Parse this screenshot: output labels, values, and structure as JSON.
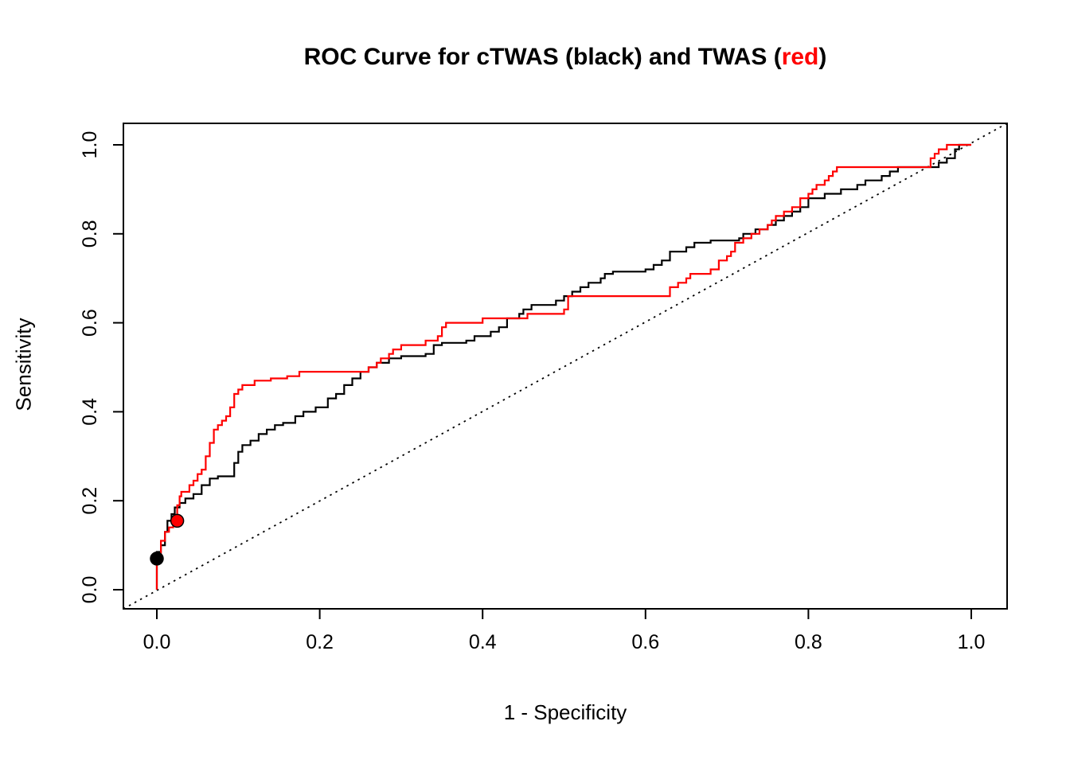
{
  "title": {
    "prefix": "ROC Curve for cTWAS (black) and TWAS (",
    "highlight": "red",
    "suffix": ")"
  },
  "colors": {
    "black": "#000000",
    "red": "#ff0000",
    "background": "#ffffff"
  },
  "chart_data": {
    "type": "line",
    "subtype": "roc-step-curve",
    "title": "ROC Curve for cTWAS (black) and TWAS (red)",
    "xlabel": "1 - Specificity",
    "ylabel": "Sensitivity",
    "xlim": [
      0,
      1
    ],
    "ylim": [
      0,
      1
    ],
    "grid": false,
    "legend_position": "none",
    "x_ticks": [
      0.0,
      0.2,
      0.4,
      0.6,
      0.8,
      1.0
    ],
    "y_ticks": [
      0.0,
      0.2,
      0.4,
      0.6,
      0.8,
      1.0
    ],
    "x_tick_labels": [
      "0.0",
      "0.2",
      "0.4",
      "0.6",
      "0.8",
      "1.0"
    ],
    "y_tick_labels": [
      "0.0",
      "0.2",
      "0.4",
      "0.6",
      "0.8",
      "1.0"
    ],
    "reference_line": {
      "style": "dotted",
      "color": "#000000",
      "from": [
        0,
        0
      ],
      "to": [
        1,
        1
      ]
    },
    "series": [
      {
        "name": "cTWAS",
        "color": "#000000",
        "marker": {
          "x": 0.0,
          "y": 0.07,
          "color": "#000000"
        },
        "points": [
          [
            0.0,
            0.0
          ],
          [
            0.0,
            0.07
          ],
          [
            0.005,
            0.085
          ],
          [
            0.01,
            0.1
          ],
          [
            0.013,
            0.13
          ],
          [
            0.018,
            0.155
          ],
          [
            0.022,
            0.17
          ],
          [
            0.028,
            0.185
          ],
          [
            0.035,
            0.195
          ],
          [
            0.045,
            0.205
          ],
          [
            0.055,
            0.215
          ],
          [
            0.065,
            0.235
          ],
          [
            0.075,
            0.25
          ],
          [
            0.095,
            0.255
          ],
          [
            0.1,
            0.285
          ],
          [
            0.105,
            0.31
          ],
          [
            0.115,
            0.325
          ],
          [
            0.125,
            0.335
          ],
          [
            0.135,
            0.35
          ],
          [
            0.145,
            0.36
          ],
          [
            0.155,
            0.37
          ],
          [
            0.17,
            0.375
          ],
          [
            0.18,
            0.39
          ],
          [
            0.195,
            0.4
          ],
          [
            0.21,
            0.41
          ],
          [
            0.22,
            0.43
          ],
          [
            0.23,
            0.44
          ],
          [
            0.24,
            0.46
          ],
          [
            0.25,
            0.475
          ],
          [
            0.26,
            0.49
          ],
          [
            0.27,
            0.5
          ],
          [
            0.285,
            0.51
          ],
          [
            0.3,
            0.52
          ],
          [
            0.33,
            0.525
          ],
          [
            0.34,
            0.53
          ],
          [
            0.35,
            0.55
          ],
          [
            0.38,
            0.555
          ],
          [
            0.39,
            0.56
          ],
          [
            0.41,
            0.57
          ],
          [
            0.42,
            0.58
          ],
          [
            0.43,
            0.59
          ],
          [
            0.445,
            0.61
          ],
          [
            0.45,
            0.62
          ],
          [
            0.46,
            0.63
          ],
          [
            0.49,
            0.64
          ],
          [
            0.5,
            0.65
          ],
          [
            0.51,
            0.66
          ],
          [
            0.52,
            0.67
          ],
          [
            0.53,
            0.68
          ],
          [
            0.545,
            0.69
          ],
          [
            0.55,
            0.7
          ],
          [
            0.56,
            0.71
          ],
          [
            0.6,
            0.715
          ],
          [
            0.61,
            0.72
          ],
          [
            0.62,
            0.73
          ],
          [
            0.63,
            0.74
          ],
          [
            0.65,
            0.76
          ],
          [
            0.66,
            0.77
          ],
          [
            0.68,
            0.78
          ],
          [
            0.715,
            0.785
          ],
          [
            0.72,
            0.79
          ],
          [
            0.735,
            0.8
          ],
          [
            0.75,
            0.81
          ],
          [
            0.76,
            0.82
          ],
          [
            0.77,
            0.83
          ],
          [
            0.78,
            0.84
          ],
          [
            0.79,
            0.85
          ],
          [
            0.8,
            0.86
          ],
          [
            0.82,
            0.88
          ],
          [
            0.84,
            0.89
          ],
          [
            0.86,
            0.9
          ],
          [
            0.87,
            0.91
          ],
          [
            0.89,
            0.92
          ],
          [
            0.9,
            0.93
          ],
          [
            0.91,
            0.94
          ],
          [
            0.92,
            0.95
          ],
          [
            0.96,
            0.95
          ],
          [
            0.97,
            0.96
          ],
          [
            0.98,
            0.97
          ],
          [
            0.985,
            0.99
          ],
          [
            1.0,
            1.0
          ]
        ]
      },
      {
        "name": "TWAS",
        "color": "#ff0000",
        "marker": {
          "x": 0.025,
          "y": 0.155,
          "color": "#ff0000"
        },
        "points": [
          [
            0.0,
            0.0
          ],
          [
            0.0,
            0.05
          ],
          [
            0.005,
            0.08
          ],
          [
            0.01,
            0.11
          ],
          [
            0.015,
            0.13
          ],
          [
            0.02,
            0.14
          ],
          [
            0.025,
            0.155
          ],
          [
            0.028,
            0.19
          ],
          [
            0.03,
            0.21
          ],
          [
            0.04,
            0.22
          ],
          [
            0.045,
            0.235
          ],
          [
            0.05,
            0.245
          ],
          [
            0.055,
            0.26
          ],
          [
            0.06,
            0.27
          ],
          [
            0.065,
            0.3
          ],
          [
            0.07,
            0.33
          ],
          [
            0.075,
            0.36
          ],
          [
            0.08,
            0.37
          ],
          [
            0.085,
            0.38
          ],
          [
            0.09,
            0.39
          ],
          [
            0.095,
            0.41
          ],
          [
            0.1,
            0.44
          ],
          [
            0.105,
            0.45
          ],
          [
            0.12,
            0.46
          ],
          [
            0.14,
            0.47
          ],
          [
            0.16,
            0.475
          ],
          [
            0.175,
            0.48
          ],
          [
            0.19,
            0.49
          ],
          [
            0.26,
            0.49
          ],
          [
            0.27,
            0.5
          ],
          [
            0.275,
            0.51
          ],
          [
            0.285,
            0.52
          ],
          [
            0.29,
            0.53
          ],
          [
            0.3,
            0.54
          ],
          [
            0.33,
            0.55
          ],
          [
            0.345,
            0.56
          ],
          [
            0.35,
            0.57
          ],
          [
            0.355,
            0.59
          ],
          [
            0.4,
            0.6
          ],
          [
            0.41,
            0.61
          ],
          [
            0.455,
            0.61
          ],
          [
            0.46,
            0.62
          ],
          [
            0.5,
            0.62
          ],
          [
            0.505,
            0.63
          ],
          [
            0.51,
            0.66
          ],
          [
            0.63,
            0.66
          ],
          [
            0.64,
            0.68
          ],
          [
            0.65,
            0.69
          ],
          [
            0.655,
            0.7
          ],
          [
            0.66,
            0.71
          ],
          [
            0.68,
            0.71
          ],
          [
            0.69,
            0.72
          ],
          [
            0.7,
            0.74
          ],
          [
            0.705,
            0.75
          ],
          [
            0.71,
            0.76
          ],
          [
            0.72,
            0.78
          ],
          [
            0.73,
            0.79
          ],
          [
            0.74,
            0.8
          ],
          [
            0.75,
            0.81
          ],
          [
            0.755,
            0.82
          ],
          [
            0.76,
            0.83
          ],
          [
            0.77,
            0.84
          ],
          [
            0.78,
            0.85
          ],
          [
            0.79,
            0.86
          ],
          [
            0.8,
            0.88
          ],
          [
            0.805,
            0.89
          ],
          [
            0.81,
            0.9
          ],
          [
            0.82,
            0.91
          ],
          [
            0.825,
            0.92
          ],
          [
            0.83,
            0.93
          ],
          [
            0.835,
            0.94
          ],
          [
            0.84,
            0.95
          ],
          [
            0.95,
            0.95
          ],
          [
            0.955,
            0.97
          ],
          [
            0.96,
            0.98
          ],
          [
            0.97,
            0.99
          ],
          [
            0.99,
            1.0
          ],
          [
            1.0,
            1.0
          ]
        ]
      }
    ]
  }
}
